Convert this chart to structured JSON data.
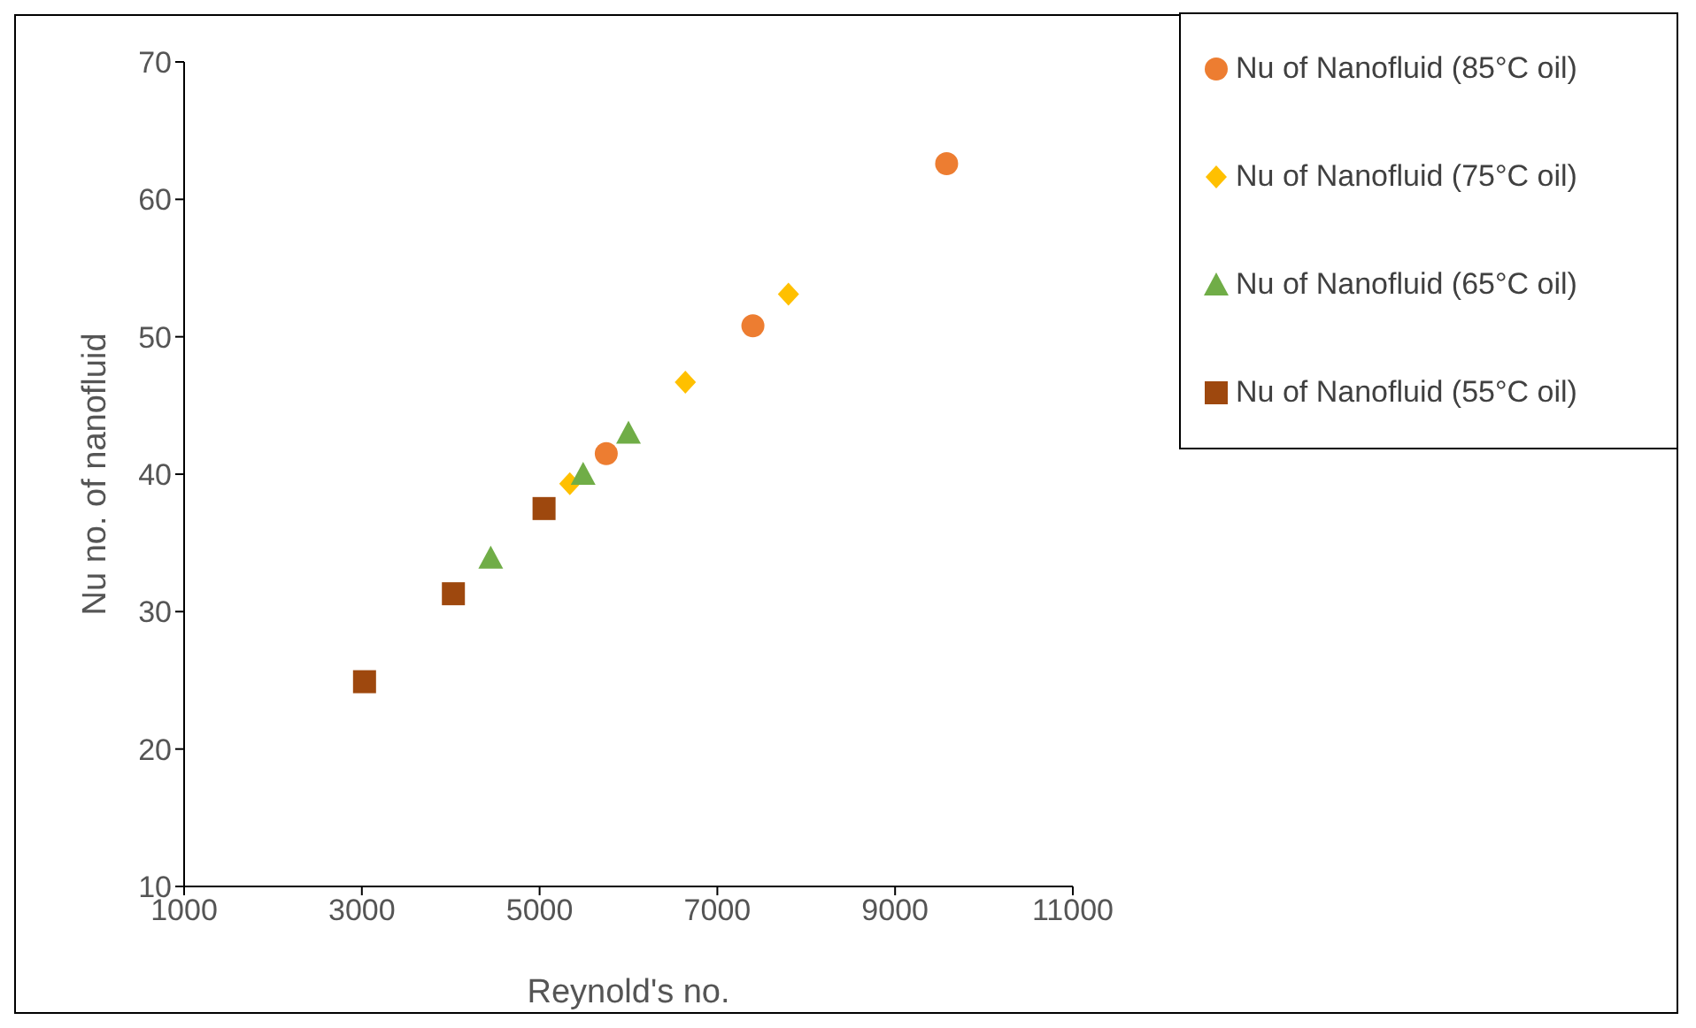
{
  "chart_data": {
    "type": "scatter",
    "xlabel": "Reynold's no.",
    "ylabel": "Nu no. of nanofluid",
    "xlim": [
      1000,
      11000
    ],
    "xticks": [
      1000,
      3000,
      5000,
      7000,
      9000,
      11000
    ],
    "ylim": [
      10,
      70
    ],
    "yticks": [
      10,
      20,
      30,
      40,
      50,
      60,
      70
    ],
    "grid": false,
    "legend": "top right",
    "series": [
      {
        "name": "Nu of Nanofluid (85°C oil)",
        "color": "#ed7d31",
        "marker": "circle",
        "x": [
          5750,
          7400,
          9580
        ],
        "values": [
          41.5,
          50.8,
          62.6
        ]
      },
      {
        "name": "Nu of Nanofluid (75°C oil)",
        "color": "#ffc000",
        "marker": "diamond",
        "x": [
          5340,
          6640,
          7800
        ],
        "values": [
          39.3,
          46.7,
          53.1
        ]
      },
      {
        "name": "Nu of Nanofluid (65°C oil)",
        "color": "#70ad47",
        "marker": "triangle",
        "x": [
          4450,
          5490,
          6000
        ],
        "values": [
          33.9,
          40,
          43
        ]
      },
      {
        "name": "Nu of Nanofluid (55°C oil)",
        "color": "#9e480e",
        "marker": "square",
        "x": [
          3030,
          4030,
          5050
        ],
        "values": [
          24.9,
          31.3,
          37.5
        ]
      }
    ]
  }
}
